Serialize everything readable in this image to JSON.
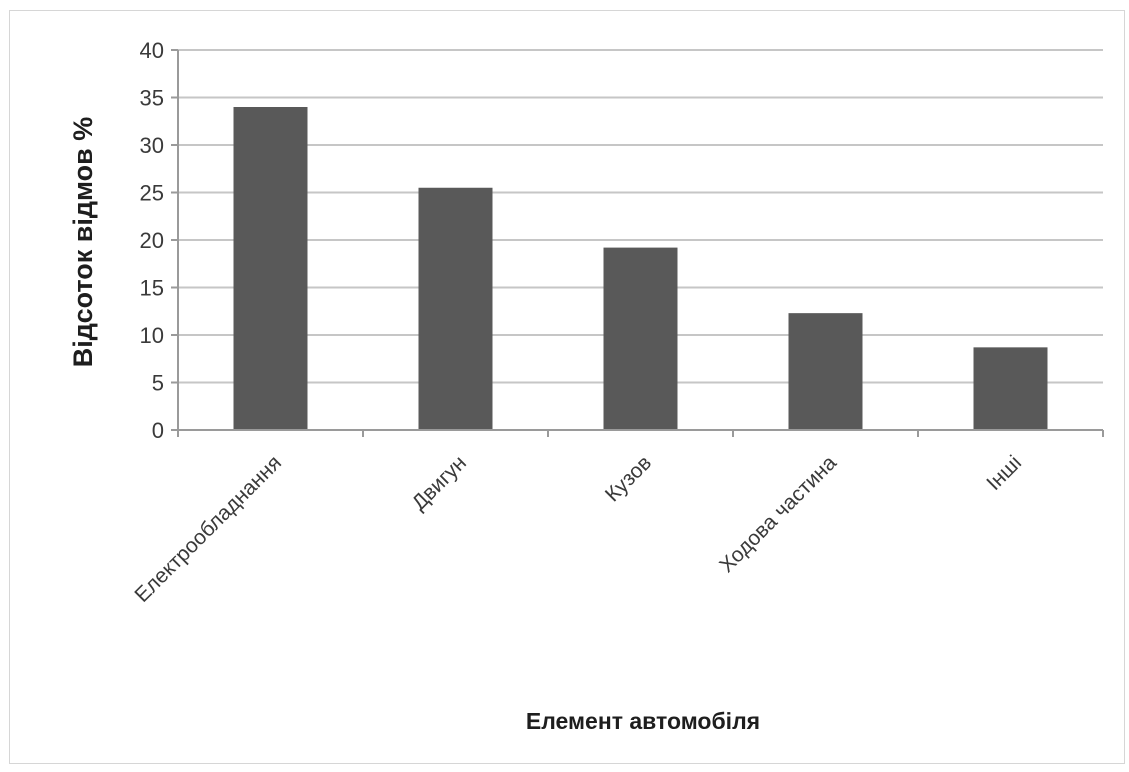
{
  "chart_data": {
    "type": "bar",
    "categories": [
      "Електрообладнання",
      "Двигун",
      "Кузов",
      "Ходова частина",
      "Інші"
    ],
    "values": [
      34,
      25.5,
      19.2,
      12.3,
      8.7
    ],
    "title": "",
    "xlabel": "Елемент автомобіля",
    "ylabel": "Відсоток відмов %",
    "ylim": [
      0,
      40
    ],
    "yticks": [
      "0",
      "5",
      "10",
      "15",
      "20",
      "25",
      "30",
      "35",
      "40"
    ],
    "grid": true,
    "legend": "none",
    "colors": {
      "bar": "#595959",
      "grid": "#c6c6c6",
      "axis": "#9a9a9a"
    }
  }
}
